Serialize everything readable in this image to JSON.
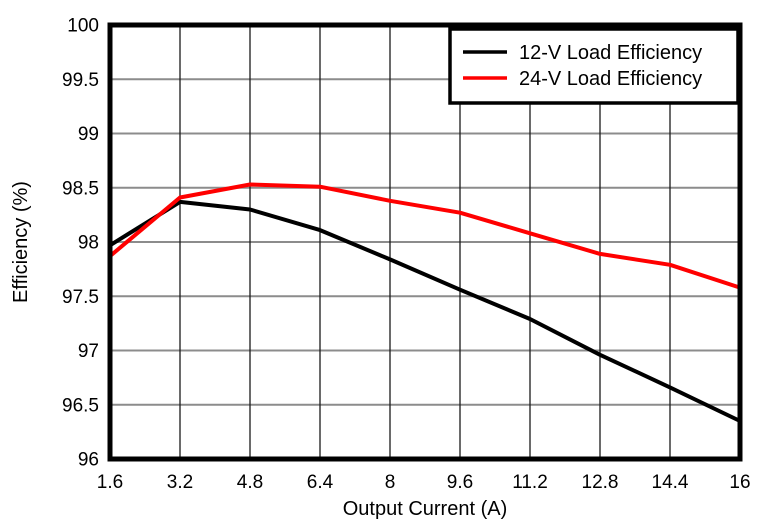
{
  "chart_data": {
    "type": "line",
    "title": "",
    "xlabel": "Output Current (A)",
    "ylabel": "Efficiency (%)",
    "x": [
      1.6,
      3.2,
      4.8,
      6.4,
      8,
      9.6,
      11.2,
      12.8,
      14.4,
      16
    ],
    "x_tick_labels": [
      "1.6",
      "3.2",
      "4.8",
      "6.4",
      "8",
      "9.6",
      "11.2",
      "12.8",
      "14.4",
      "16"
    ],
    "xlim": [
      1.6,
      16
    ],
    "y_ticks": [
      96,
      96.5,
      97,
      97.5,
      98,
      98.5,
      99,
      99.5,
      100
    ],
    "y_tick_labels": [
      "96",
      "96.5",
      "97",
      "97.5",
      "98",
      "98.5",
      "99",
      "99.5",
      "100"
    ],
    "ylim": [
      96,
      100
    ],
    "grid": true,
    "legend_position": "top-right",
    "series": [
      {
        "name": "12-V Load Efficiency",
        "color": "#000000",
        "values": [
          97.97,
          98.37,
          98.3,
          98.11,
          97.84,
          97.56,
          97.29,
          96.96,
          96.66,
          96.35
        ]
      },
      {
        "name": "24-V Load Efficiency",
        "color": "#ff0000",
        "values": [
          97.87,
          98.41,
          98.53,
          98.51,
          98.38,
          98.27,
          98.08,
          97.89,
          97.79,
          97.58
        ]
      }
    ]
  },
  "colors": {
    "background": "#ffffff",
    "plot_border": "#000000",
    "h_gridline": "#8c8c8c",
    "v_gridline": "#1a1a1a",
    "legend_border": "#000000",
    "series_12v": "#000000",
    "series_24v": "#ff0000"
  }
}
